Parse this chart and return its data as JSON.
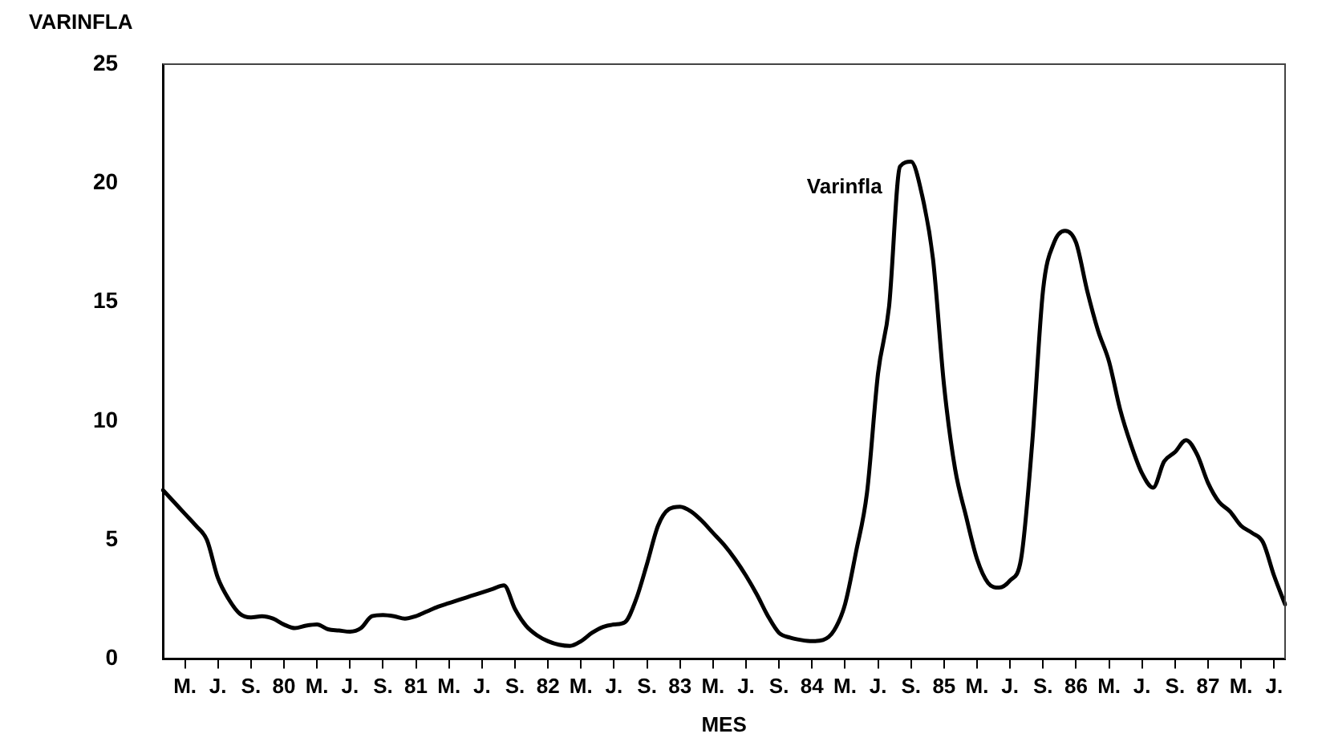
{
  "chart_data": {
    "type": "line",
    "ylabel": "VARINFLA",
    "xlabel": "MES",
    "categories": [
      null,
      null,
      "M.",
      null,
      null,
      "J.",
      null,
      null,
      "S.",
      null,
      null,
      "80",
      null,
      null,
      "M.",
      null,
      null,
      "J.",
      null,
      null,
      "S.",
      null,
      null,
      "81",
      null,
      null,
      "M.",
      null,
      null,
      "J.",
      null,
      null,
      "S.",
      null,
      null,
      "82",
      null,
      null,
      "M.",
      null,
      null,
      "J.",
      null,
      null,
      "S.",
      null,
      null,
      "83",
      null,
      null,
      "M.",
      null,
      null,
      "J.",
      null,
      null,
      "S.",
      null,
      null,
      "84",
      null,
      null,
      "M.",
      null,
      null,
      "J.",
      null,
      null,
      "S.",
      null,
      null,
      "85",
      null,
      null,
      "M.",
      null,
      null,
      "J.",
      null,
      null,
      "S.",
      null,
      null,
      "86",
      null,
      null,
      "M.",
      null,
      null,
      "J.",
      null,
      null,
      "S.",
      null,
      null,
      "87",
      null,
      null,
      "M.",
      null,
      null,
      "J.",
      null
    ],
    "series": [
      {
        "name": "Varinfla",
        "color": "#000000",
        "values": [
          7.1,
          6.6,
          6.1,
          5.6,
          5.0,
          3.4,
          2.5,
          1.9,
          1.75,
          1.8,
          1.7,
          1.45,
          1.3,
          1.4,
          1.45,
          1.25,
          1.2,
          1.15,
          1.3,
          1.8,
          1.85,
          1.8,
          1.7,
          1.8,
          2.0,
          2.2,
          2.35,
          2.5,
          2.65,
          2.8,
          2.95,
          3.1,
          2.1,
          1.4,
          1.0,
          0.75,
          0.6,
          0.55,
          0.75,
          1.1,
          1.35,
          1.45,
          1.55,
          2.5,
          4.0,
          5.6,
          6.3,
          6.4,
          6.2,
          5.8,
          5.3,
          4.8,
          4.2,
          3.5,
          2.7,
          1.8,
          1.1,
          0.9,
          0.8,
          0.75,
          0.8,
          1.2,
          2.3,
          4.5,
          7.0,
          12.0,
          14.8,
          20.7,
          20.9,
          19.5,
          16.8,
          11.5,
          8.0,
          6.0,
          4.2,
          3.2,
          3.0,
          3.3,
          4.2,
          9.0,
          15.5,
          17.5,
          18.0,
          17.5,
          15.5,
          13.8,
          12.5,
          10.5,
          9.0,
          7.8,
          7.2,
          8.3,
          8.7,
          9.2,
          8.6,
          7.4,
          6.6,
          6.2,
          5.6,
          5.3,
          4.9,
          3.5,
          2.3
        ]
      }
    ],
    "ylim": [
      0,
      25
    ],
    "yticks": [
      0,
      5,
      10,
      15,
      20,
      25
    ],
    "grid": false,
    "legend": false,
    "marker": "none",
    "line_style": "solid"
  }
}
